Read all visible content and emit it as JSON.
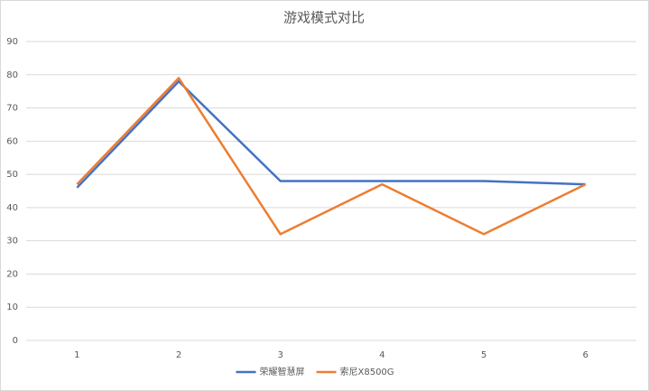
{
  "chart_data": {
    "type": "line",
    "title": "游戏模式对比",
    "categories": [
      "1",
      "2",
      "3",
      "4",
      "5",
      "6"
    ],
    "series": [
      {
        "name": "荣耀智慧屏",
        "color": "#4472c4",
        "values": [
          46,
          78,
          48,
          48,
          48,
          47
        ]
      },
      {
        "name": "索尼X8500G",
        "color": "#ed7d31",
        "values": [
          47,
          79,
          32,
          47,
          32,
          47
        ]
      }
    ],
    "ylim": [
      0,
      90
    ],
    "yticks": [
      0,
      10,
      20,
      30,
      40,
      50,
      60,
      70,
      80,
      90
    ],
    "grid": true,
    "legend": "bottom"
  }
}
